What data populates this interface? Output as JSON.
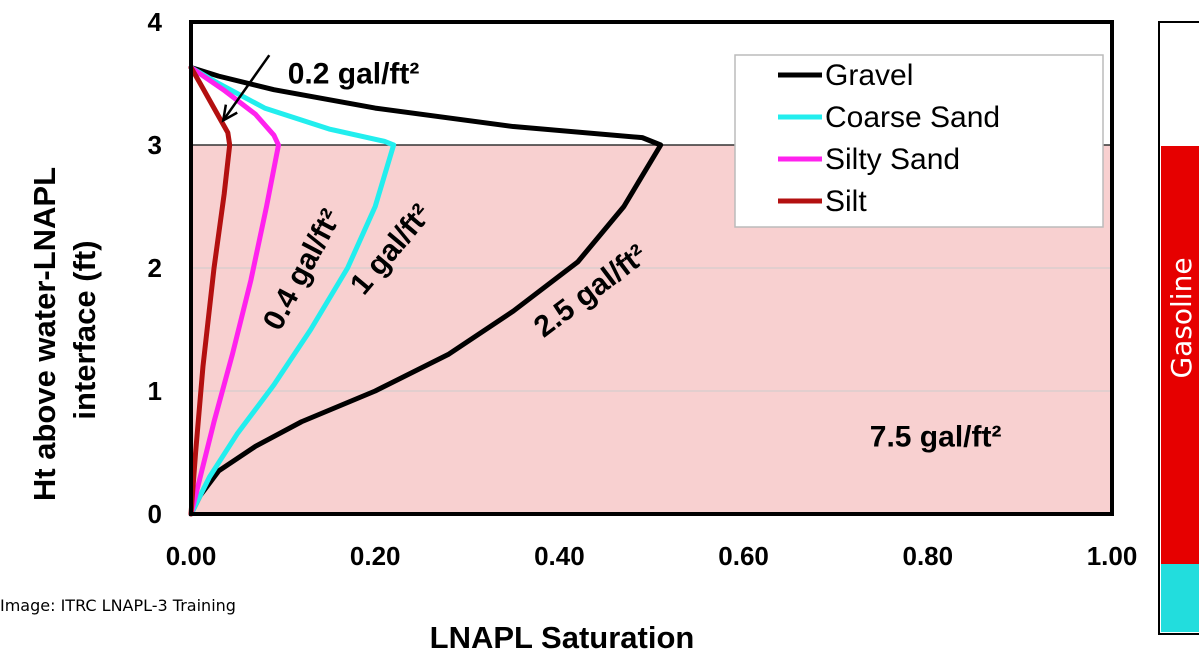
{
  "chart_data": {
    "type": "line",
    "xlabel": "LNAPL Saturation",
    "ylabel_lines": [
      "Ht above water-LNAPL",
      "interface (ft)"
    ],
    "xlim": [
      0,
      1
    ],
    "ylim": [
      0,
      4
    ],
    "x_ticks": [
      "0.00",
      "0.20",
      "0.40",
      "0.60",
      "0.80",
      "1.00"
    ],
    "y_ticks": [
      "0",
      "1",
      "2",
      "3",
      "4"
    ],
    "grid": "horizontal",
    "legend_position": "top-right",
    "shaded_region": {
      "y_from": 0,
      "y_to": 3,
      "color": "#f8d0d0"
    },
    "reference_line_y": 3,
    "series": [
      {
        "name": "Gravel",
        "color": "#000000",
        "points": [
          [
            0,
            0
          ],
          [
            0.01,
            0.15
          ],
          [
            0.03,
            0.35
          ],
          [
            0.07,
            0.55
          ],
          [
            0.12,
            0.75
          ],
          [
            0.2,
            1.0
          ],
          [
            0.28,
            1.3
          ],
          [
            0.35,
            1.65
          ],
          [
            0.42,
            2.05
          ],
          [
            0.47,
            2.5
          ],
          [
            0.51,
            3.0
          ],
          [
            0.49,
            3.06
          ],
          [
            0.35,
            3.15
          ],
          [
            0.2,
            3.3
          ],
          [
            0.09,
            3.45
          ],
          [
            0.03,
            3.56
          ],
          [
            0,
            3.63
          ]
        ]
      },
      {
        "name": "Coarse Sand",
        "color": "#22eeee",
        "points": [
          [
            0,
            0
          ],
          [
            0.02,
            0.3
          ],
          [
            0.05,
            0.65
          ],
          [
            0.09,
            1.05
          ],
          [
            0.13,
            1.5
          ],
          [
            0.17,
            2.0
          ],
          [
            0.2,
            2.5
          ],
          [
            0.22,
            3.0
          ],
          [
            0.21,
            3.03
          ],
          [
            0.15,
            3.13
          ],
          [
            0.08,
            3.3
          ],
          [
            0.03,
            3.5
          ],
          [
            0,
            3.63
          ]
        ]
      },
      {
        "name": "Silty Sand",
        "color": "#ff22ee",
        "points": [
          [
            0,
            0
          ],
          [
            0.01,
            0.3
          ],
          [
            0.025,
            0.75
          ],
          [
            0.045,
            1.3
          ],
          [
            0.065,
            1.9
          ],
          [
            0.082,
            2.5
          ],
          [
            0.095,
            3.0
          ],
          [
            0.09,
            3.08
          ],
          [
            0.07,
            3.25
          ],
          [
            0.035,
            3.45
          ],
          [
            0,
            3.63
          ]
        ]
      },
      {
        "name": "Silt",
        "color": "#b31010",
        "points": [
          [
            0,
            0
          ],
          [
            0.005,
            0.5
          ],
          [
            0.013,
            1.2
          ],
          [
            0.025,
            2.0
          ],
          [
            0.036,
            2.6
          ],
          [
            0.042,
            3.0
          ],
          [
            0.04,
            3.1
          ],
          [
            0.025,
            3.3
          ],
          [
            0.01,
            3.5
          ],
          [
            0,
            3.63
          ]
        ]
      }
    ],
    "annotations": [
      {
        "text": "0.2 gal/ft²",
        "x": 0.105,
        "y": 3.5,
        "rotate": 0,
        "anchor": "start"
      },
      {
        "text": "0.4 gal/ft²",
        "x": 0.13,
        "y": 1.95,
        "rotate": -62,
        "anchor": "middle"
      },
      {
        "text": "1 gal/ft²",
        "x": 0.225,
        "y": 2.1,
        "rotate": -50,
        "anchor": "middle"
      },
      {
        "text": "2.5 gal/ft²",
        "x": 0.44,
        "y": 1.75,
        "rotate": -37,
        "anchor": "middle"
      },
      {
        "text": "7.5 gal/ft²",
        "x": 0.88,
        "y": 0.55,
        "rotate": 0,
        "anchor": "end"
      }
    ],
    "arrow": {
      "from": [
        0.085,
        3.73
      ],
      "to": [
        0.035,
        3.2
      ]
    }
  },
  "credit": "Image: ITRC LNAPL-3 Training",
  "side_panel": {
    "label": "Gasoline",
    "colors": {
      "top": "#ffffff",
      "middle": "#e60000",
      "bottom": "#22dddd"
    }
  }
}
